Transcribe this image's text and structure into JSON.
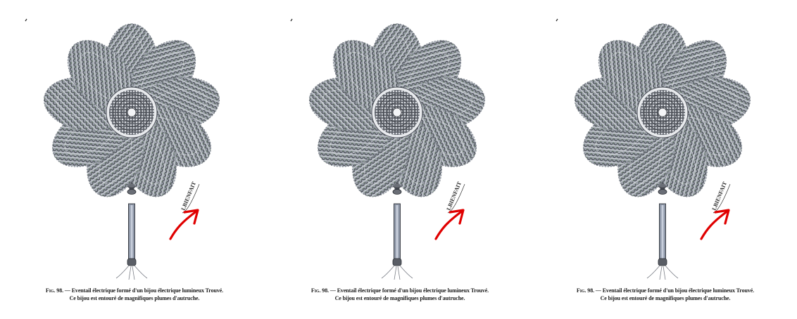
{
  "figure": {
    "signature": "LBIENFAIT",
    "caption_label": "Fig. 98.",
    "caption_line1": " — Eventail électrique formé d'un bijou électrique lumineux Trouvé.",
    "caption_line2": "Ce bijou est entouré de magnifiques plumes d'autruche.",
    "annotation_color": "#e00000"
  },
  "panels": [
    {
      "id": 1
    },
    {
      "id": 2
    },
    {
      "id": 3
    }
  ]
}
